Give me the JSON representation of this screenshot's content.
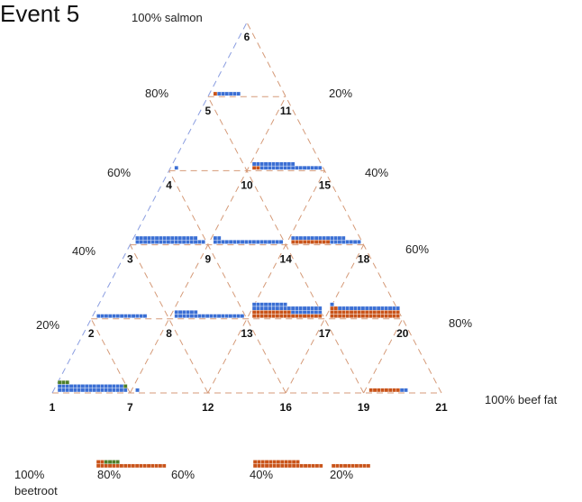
{
  "chart_data": {
    "type": "ternary",
    "title": "Event 5",
    "vertices": {
      "top": "100% salmon",
      "right": "100% beef fat",
      "left_line1": "100%",
      "left_line2": "beetroot"
    },
    "left_axis_ticks": [
      "80%",
      "60%",
      "40%",
      "20%"
    ],
    "right_axis_ticks": [
      "20%",
      "40%",
      "60%",
      "80%"
    ],
    "bottom_axis_ticks": [
      "80%",
      "60%",
      "40%",
      "20%"
    ],
    "node_labels": [
      "1",
      "2",
      "3",
      "4",
      "5",
      "6",
      "7",
      "8",
      "9",
      "10",
      "11",
      "12",
      "13",
      "14",
      "15",
      "16",
      "17",
      "18",
      "19",
      "20",
      "21"
    ],
    "colors": {
      "salmon": "#3b6fd4",
      "beef_fat": "#c9541a",
      "beetroot": "#4f7f2a",
      "guide_left": "#8a9de0",
      "guide_other": "#d59a78"
    },
    "blocks": [
      {
        "node": "1",
        "salmon": 35,
        "beef_fat": 0,
        "beetroot": 4
      },
      {
        "node": "2",
        "salmon": 13,
        "beef_fat": 0,
        "beetroot": 0
      },
      {
        "node": "3",
        "salmon": 34,
        "beef_fat": 0,
        "beetroot": 0
      },
      {
        "node": "4",
        "salmon": 1,
        "beef_fat": 0,
        "beetroot": 0
      },
      {
        "node": "5",
        "salmon": 6,
        "beef_fat": 1,
        "beetroot": 0
      },
      {
        "node": "7",
        "salmon": 1,
        "beef_fat": 0,
        "beetroot": 0
      },
      {
        "node": "8",
        "salmon": 24,
        "beef_fat": 0,
        "beetroot": 0
      },
      {
        "node": "9",
        "salmon": 20,
        "beef_fat": 0,
        "beetroot": 0
      },
      {
        "node": "10",
        "salmon": 27,
        "beef_fat": 2,
        "beetroot": 0
      },
      {
        "node": "13",
        "salmon": 35,
        "beef_fat": 28,
        "beetroot": 0
      },
      {
        "node": "14",
        "salmon": 22,
        "beef_fat": 10,
        "beetroot": 0
      },
      {
        "node": "17",
        "salmon": 17,
        "beef_fat": 38,
        "beetroot": 0
      },
      {
        "node": "19",
        "salmon": 2,
        "beef_fat": 8,
        "beetroot": 0
      }
    ],
    "bottom_blocks": [
      {
        "beef_fat": 20,
        "beetroot": 4
      },
      {
        "beef_fat": 30,
        "beetroot": 0
      },
      {
        "beef_fat": 10,
        "beetroot": 0
      }
    ]
  }
}
